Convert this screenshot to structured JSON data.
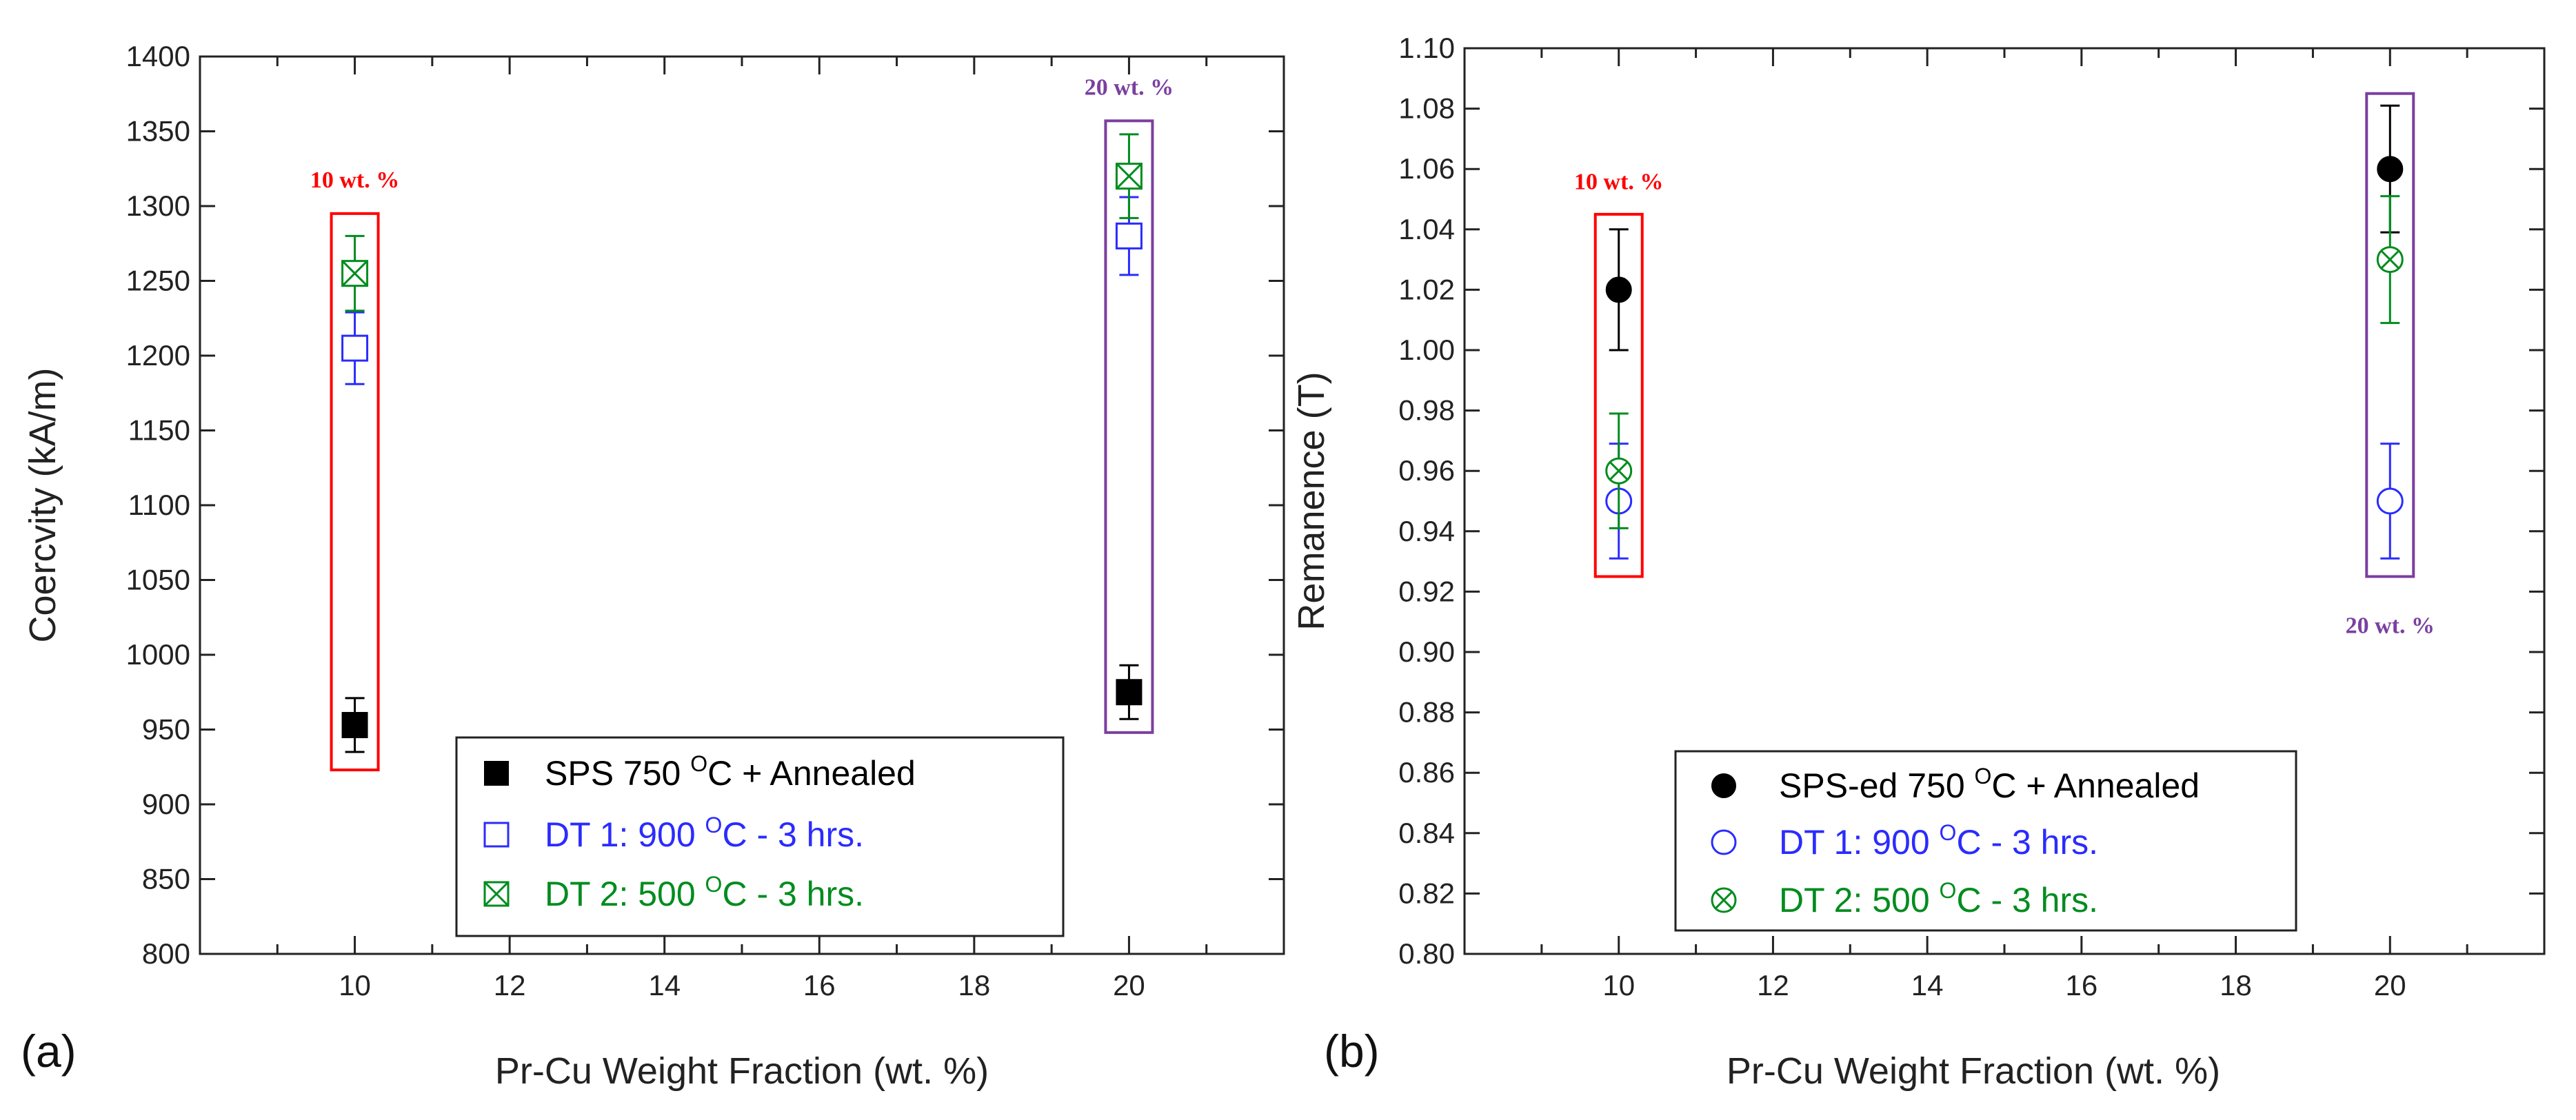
{
  "chart_data": [
    {
      "type": "scatter",
      "panel_label": "(a)",
      "xlabel": "Pr-Cu Weight Fraction (wt. %)",
      "ylabel": "Coercvity (kA/m)",
      "xlim": [
        8,
        22
      ],
      "ylim": [
        800,
        1400
      ],
      "x_ticks": [
        10,
        12,
        14,
        16,
        18,
        20
      ],
      "y_ticks": [
        800,
        850,
        900,
        950,
        1000,
        1050,
        1100,
        1150,
        1200,
        1250,
        1300,
        1350,
        1400
      ],
      "series": [
        {
          "name": "SPS 750 °C + Annealed",
          "legend_pre": "SPS 750 ",
          "legend_sup": "O",
          "legend_post": "C + Annealed",
          "marker": "filled-square",
          "color": "#000000",
          "x": [
            10,
            20
          ],
          "y": [
            953,
            975
          ],
          "err": [
            18,
            18
          ]
        },
        {
          "name": "DT 1: 900 °C - 3 hrs.",
          "legend_pre": "DT 1: 900 ",
          "legend_sup": "O",
          "legend_post": "C - 3 hrs.",
          "marker": "open-square",
          "color": "#2b2bff",
          "x": [
            10,
            20
          ],
          "y": [
            1205,
            1280
          ],
          "err": [
            24,
            26
          ]
        },
        {
          "name": "DT 2: 500 °C - 3 hrs.",
          "legend_pre": "DT 2: 500 ",
          "legend_sup": "O",
          "legend_post": "C - 3 hrs.",
          "marker": "crossed-square",
          "color": "#008c1e",
          "x": [
            10,
            20
          ],
          "y": [
            1255,
            1320
          ],
          "err": [
            25,
            28
          ]
        }
      ],
      "annotations": [
        {
          "text": "10 wt. %",
          "color": "#ff0000",
          "x": 10,
          "box_y": [
            923,
            1295
          ],
          "label_y": 1318
        },
        {
          "text": "20 wt. %",
          "color": "#7b3fa0",
          "x": 20,
          "box_y": [
            948,
            1357
          ],
          "label_y": 1380
        }
      ]
    },
    {
      "type": "scatter",
      "panel_label": "(b)",
      "xlabel": "Pr-Cu Weight Fraction (wt. %)",
      "ylabel": "Remanence (T)",
      "xlim": [
        8,
        22
      ],
      "ylim": [
        0.8,
        1.1
      ],
      "x_ticks": [
        10,
        12,
        14,
        16,
        18,
        20
      ],
      "y_ticks": [
        "0.80",
        "0.82",
        "0.84",
        "0.86",
        "0.88",
        "0.90",
        "0.92",
        "0.94",
        "0.96",
        "0.98",
        "1.00",
        "1.02",
        "1.04",
        "1.06",
        "1.08",
        "1.10"
      ],
      "series": [
        {
          "name": "SPS-ed 750 °C + Annealed",
          "legend_pre": "SPS-ed 750 ",
          "legend_sup": "O",
          "legend_post": "C + Annealed",
          "marker": "filled-circle",
          "color": "#000000",
          "x": [
            10,
            20
          ],
          "y": [
            1.02,
            1.06
          ],
          "err": [
            0.02,
            0.021
          ]
        },
        {
          "name": "DT 1: 900 °C - 3 hrs.",
          "legend_pre": "DT 1: 900 ",
          "legend_sup": "O",
          "legend_post": "C - 3 hrs.",
          "marker": "open-circle",
          "color": "#2b2bff",
          "x": [
            10,
            20
          ],
          "y": [
            0.95,
            0.95
          ],
          "err": [
            0.019,
            0.019
          ]
        },
        {
          "name": "DT 2: 500 °C - 3 hrs.",
          "legend_pre": "DT 2: 500 ",
          "legend_sup": "O",
          "legend_post": "C - 3 hrs.",
          "marker": "crossed-circle",
          "color": "#008c1e",
          "x": [
            10,
            20
          ],
          "y": [
            0.96,
            1.03
          ],
          "err": [
            0.019,
            0.021
          ]
        }
      ],
      "annotations": [
        {
          "text": "10 wt. %",
          "color": "#ff0000",
          "x": 10,
          "box_y": [
            0.925,
            1.045
          ],
          "label_y": 1.056
        },
        {
          "text": "20 wt. %",
          "color": "#7b3fa0",
          "x": 20,
          "box_y": [
            0.925,
            1.085
          ],
          "label_y": 0.909
        }
      ]
    }
  ]
}
